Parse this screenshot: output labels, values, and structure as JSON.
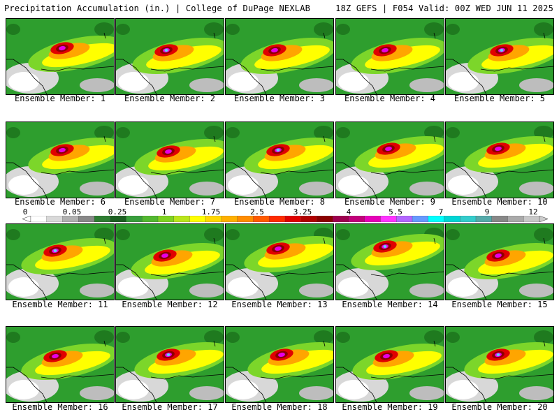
{
  "header": {
    "title_left": "Precipitation Accumulation (in.) | College of DuPage NEXLAB",
    "title_right": "18Z GEFS | F054 Valid: 00Z WED JUN 11 2025"
  },
  "members": [
    "Ensemble Member: 1",
    "Ensemble Member: 2",
    "Ensemble Member: 3",
    "Ensemble Member: 4",
    "Ensemble Member: 5",
    "Ensemble Member: 6",
    "Ensemble Member: 7",
    "Ensemble Member: 8",
    "Ensemble Member: 9",
    "Ensemble Member: 10",
    "Ensemble Member: 11",
    "Ensemble Member: 12",
    "Ensemble Member: 13",
    "Ensemble Member: 14",
    "Ensemble Member: 15",
    "Ensemble Member: 16",
    "Ensemble Member: 17",
    "Ensemble Member: 18",
    "Ensemble Member: 19",
    "Ensemble Member: 20"
  ],
  "colorbar": {
    "labels": [
      "0",
      "0.05",
      "0.25",
      "1",
      "1.75",
      "2.5",
      "3.25",
      "4",
      "5.5",
      "7",
      "9",
      "12"
    ],
    "colors": [
      "#ffffff",
      "#d9d9d9",
      "#b0b0b0",
      "#888888",
      "#2e7d32",
      "#1b5e20",
      "#389e3c",
      "#52b830",
      "#7fd321",
      "#b9e51b",
      "#ffff00",
      "#ffd700",
      "#ffb000",
      "#ff8c00",
      "#ff5a00",
      "#ff2a00",
      "#e00000",
      "#b00000",
      "#8b0000",
      "#9e004f",
      "#c2007a",
      "#e600b8",
      "#ff33ff",
      "#b266ff",
      "#6699ff",
      "#00ffff",
      "#00d5d5",
      "#33cccc",
      "#55aaaa",
      "#888888",
      "#aaaaaa",
      "#c8c8c8"
    ]
  },
  "colors": {
    "green_dark": "#1f7a1f",
    "green": "#2e9e2e",
    "green_light": "#7cd62a",
    "yellow": "#ffff00",
    "orange": "#ffa500",
    "red": "#e00000",
    "maroon": "#8b0000",
    "magenta": "#e600e6",
    "violet": "#9966ff",
    "cyan": "#66ccff"
  }
}
